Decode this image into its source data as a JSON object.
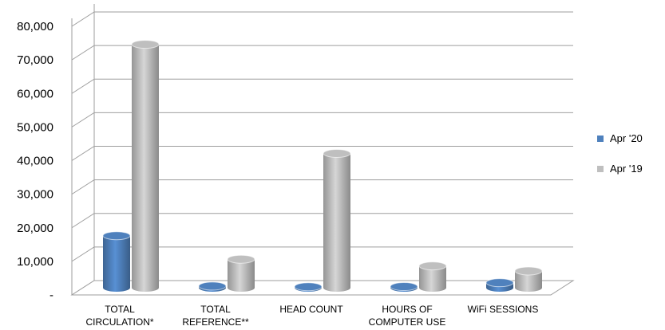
{
  "chart_data": {
    "type": "bar",
    "categories": [
      [
        "TOTAL",
        "CIRCULATION*"
      ],
      [
        "TOTAL",
        "REFERENCE**"
      ],
      [
        "HEAD COUNT"
      ],
      [
        "HOURS OF",
        "COMPUTER USE"
      ],
      [
        "WiFi SESSIONS"
      ]
    ],
    "series": [
      {
        "name": "Apr '20",
        "color": "#4F81BD",
        "values": [
          15500,
          500,
          300,
          350,
          1500
        ]
      },
      {
        "name": "Apr '19",
        "color": "#BFBFBF",
        "values": [
          72500,
          8500,
          40000,
          6500,
          5000
        ]
      }
    ],
    "yticks": [
      "80,000",
      "70,000",
      "60,000",
      "50,000",
      "40,000",
      "30,000",
      "20,000",
      "10,000",
      "-"
    ],
    "ylim": [
      0,
      80000
    ],
    "legend_position": "right",
    "grid": true
  }
}
